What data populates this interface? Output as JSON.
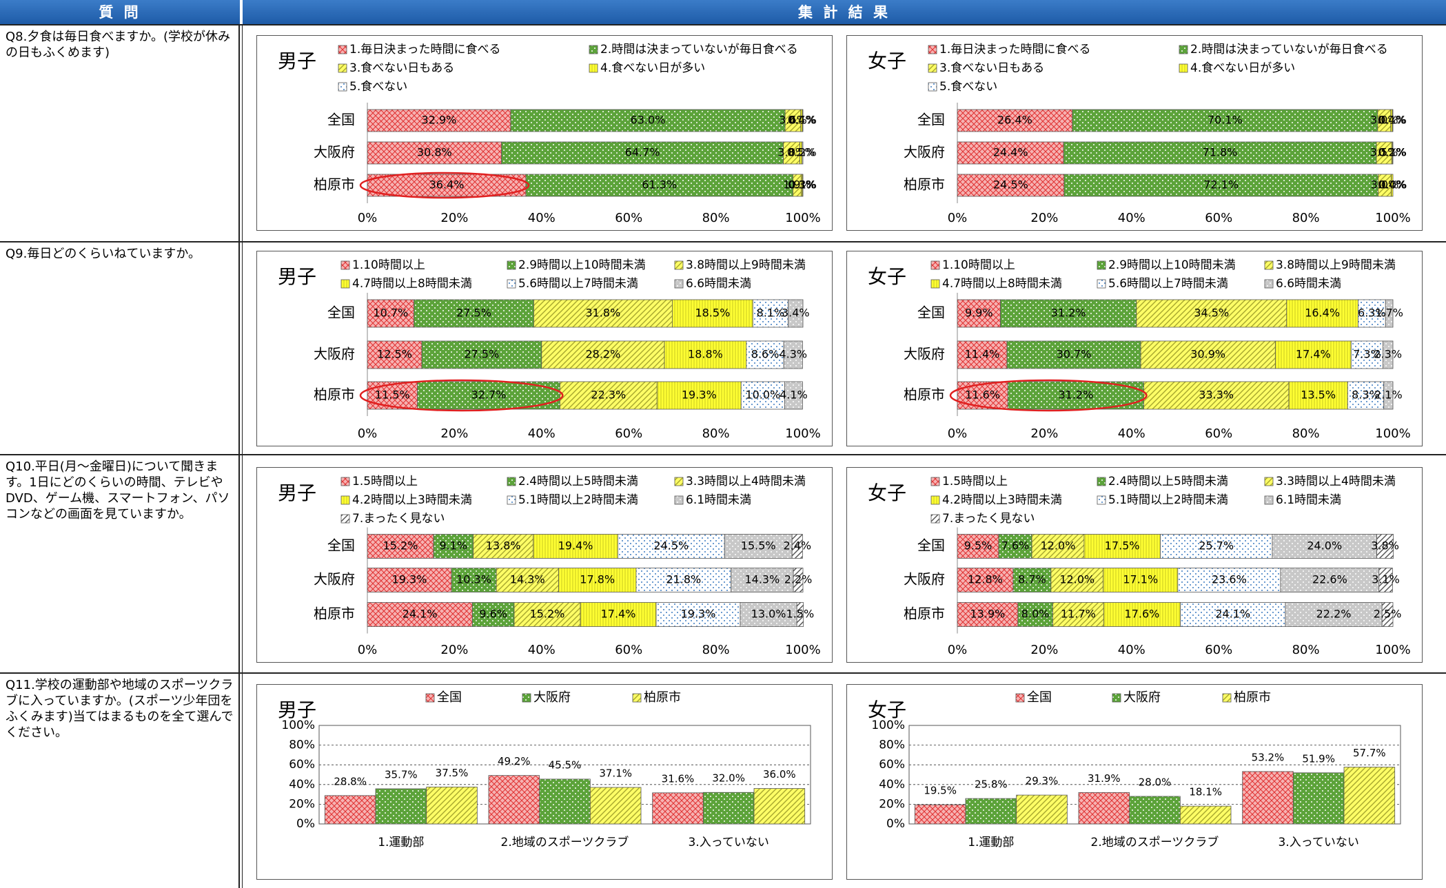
{
  "header": {
    "question": "質 問",
    "results": "集 計 結 果"
  },
  "questions": [
    "Q8.夕食は毎日食べますか。(学校が休みの日もふくめます)",
    "Q9.毎日どのくらいねていますか。",
    "Q10.平日(月～金曜日)について聞きます。1日にどのくらいの時間、テレビやDVD、ゲーム機、スマートフォン、パソコンなどの画面を見ていますか。",
    "Q11.学校の運動部や地域のスポーツクラブに入っていますか。(スポーツ少年団をふくみます)当てはまるものを全て選んでください。"
  ],
  "chart_data": [
    {
      "type": "bar",
      "orientation": "horizontal",
      "stacked": true,
      "title": "男子",
      "categories": [
        "全国",
        "大阪府",
        "柏原市"
      ],
      "series": [
        {
          "name": "1.毎日決まった時間に食べる",
          "color": "#f6b2b2",
          "values": [
            32.9,
            30.8,
            36.4
          ],
          "value_labels": [
            "32.9%",
            "30.8%",
            "36.4%"
          ]
        },
        {
          "name": "2.時間は決まっていないが毎日食べる",
          "color": "#5ca33a",
          "values": [
            63.0,
            64.7,
            61.3
          ],
          "value_labels": [
            "63.0%",
            "64.7%",
            "61.3%"
          ]
        },
        {
          "name": "3.食べない日もある",
          "color": "#ffff66",
          "values": [
            3.6,
            3.8,
            1.9
          ],
          "value_labels": [
            "3.6%",
            "3.8%",
            "1.9%"
          ]
        },
        {
          "name": "4.食べない日が多い",
          "color": "#ffff33",
          "values": [
            0.4,
            0.5,
            0.3
          ],
          "value_labels": [
            "0.4%",
            "0.5%",
            "0.3%"
          ]
        },
        {
          "name": "5.食べない",
          "color": "#ffffff",
          "values": [
            0.1,
            0.2,
            0.1
          ],
          "value_labels": [
            "0.1%",
            "0.2%",
            "0.1%"
          ]
        }
      ],
      "xlim": [
        0,
        100
      ],
      "xticks": [
        {
          "value": 0,
          "label": "0%"
        },
        {
          "value": 20,
          "label": "20%"
        },
        {
          "value": 40,
          "label": "40%"
        },
        {
          "value": 60,
          "label": "60%"
        },
        {
          "value": 80,
          "label": "80%"
        },
        {
          "value": 100,
          "label": "100%"
        }
      ]
    },
    {
      "type": "bar",
      "orientation": "horizontal",
      "stacked": true,
      "title": "女子",
      "categories": [
        "全国",
        "大阪府",
        "柏原市"
      ],
      "series": [
        {
          "name": "1.毎日決まった時間に食べる",
          "color": "#f6b2b2",
          "values": [
            26.4,
            24.4,
            24.5
          ],
          "value_labels": [
            "26.4%",
            "24.4%",
            "24.5%"
          ]
        },
        {
          "name": "2.時間は決まっていないが毎日食べる",
          "color": "#5ca33a",
          "values": [
            70.1,
            71.8,
            72.1
          ],
          "value_labels": [
            "70.1%",
            "71.8%",
            "72.1%"
          ]
        },
        {
          "name": "3.食べない日もある",
          "color": "#ffff66",
          "values": [
            3.0,
            3.5,
            3.0
          ],
          "value_labels": [
            "3.0%",
            "3.5%",
            "3.0%"
          ]
        },
        {
          "name": "4.食べない日が多い",
          "color": "#ffff33",
          "values": [
            0.4,
            0.2,
            0.4
          ],
          "value_labels": [
            "0.4%",
            "0.2%",
            "0.4%"
          ]
        },
        {
          "name": "5.食べない",
          "color": "#ffffff",
          "values": [
            0.1,
            0.1,
            0.0
          ],
          "value_labels": [
            "0.1%",
            "0.1%",
            "0.0%"
          ]
        }
      ],
      "xlim": [
        0,
        100
      ],
      "xticks": [
        {
          "value": 0,
          "label": "0%"
        },
        {
          "value": 20,
          "label": "20%"
        },
        {
          "value": 40,
          "label": "40%"
        },
        {
          "value": 60,
          "label": "60%"
        },
        {
          "value": 80,
          "label": "80%"
        },
        {
          "value": 100,
          "label": "100%"
        }
      ]
    },
    {
      "type": "bar",
      "orientation": "horizontal",
      "stacked": true,
      "title": "男子",
      "categories": [
        "全国",
        "大阪府",
        "柏原市"
      ],
      "series": [
        {
          "name": "1.10時間以上",
          "color": "#f6b2b2",
          "values": [
            10.7,
            12.5,
            11.5
          ],
          "value_labels": [
            "10.7%",
            "12.5%",
            "11.5%"
          ]
        },
        {
          "name": "2.9時間以上10時間未満",
          "color": "#5ca33a",
          "values": [
            27.5,
            27.5,
            32.7
          ],
          "value_labels": [
            "27.5%",
            "27.5%",
            "32.7%"
          ]
        },
        {
          "name": "3.8時間以上9時間未満",
          "color": "#ffff66",
          "values": [
            31.8,
            28.2,
            22.3
          ],
          "value_labels": [
            "31.8%",
            "28.2%",
            "22.3%"
          ]
        },
        {
          "name": "4.7時間以上8時間未満",
          "color": "#ffff33",
          "values": [
            18.5,
            18.8,
            19.3
          ],
          "value_labels": [
            "18.5%",
            "18.8%",
            "19.3%"
          ]
        },
        {
          "name": "5.6時間以上7時間未満",
          "color": "#ffffff",
          "values": [
            8.1,
            8.6,
            10.0
          ],
          "value_labels": [
            "8.1%",
            "8.6%",
            "10.0%"
          ]
        },
        {
          "name": "6.6時間未満",
          "color": "#c8c8c8",
          "values": [
            3.4,
            4.3,
            4.1
          ],
          "value_labels": [
            "3.4%",
            "4.3%",
            "4.1%"
          ]
        }
      ],
      "xlim": [
        0,
        100
      ],
      "xticks": [
        {
          "value": 0,
          "label": "0%"
        },
        {
          "value": 20,
          "label": "20%"
        },
        {
          "value": 40,
          "label": "40%"
        },
        {
          "value": 60,
          "label": "60%"
        },
        {
          "value": 80,
          "label": "80%"
        },
        {
          "value": 100,
          "label": "100%"
        }
      ]
    },
    {
      "type": "bar",
      "orientation": "horizontal",
      "stacked": true,
      "title": "女子",
      "categories": [
        "全国",
        "大阪府",
        "柏原市"
      ],
      "series": [
        {
          "name": "1.10時間以上",
          "color": "#f6b2b2",
          "values": [
            9.9,
            11.4,
            11.6
          ],
          "value_labels": [
            "9.9%",
            "11.4%",
            "11.6%"
          ]
        },
        {
          "name": "2.9時間以上10時間未満",
          "color": "#5ca33a",
          "values": [
            31.2,
            30.7,
            31.2
          ],
          "value_labels": [
            "31.2%",
            "30.7%",
            "31.2%"
          ]
        },
        {
          "name": "3.8時間以上9時間未満",
          "color": "#ffff66",
          "values": [
            34.5,
            30.9,
            33.3
          ],
          "value_labels": [
            "34.5%",
            "30.9%",
            "33.3%"
          ]
        },
        {
          "name": "4.7時間以上8時間未満",
          "color": "#ffff33",
          "values": [
            16.4,
            17.4,
            13.5
          ],
          "value_labels": [
            "16.4%",
            "17.4%",
            "13.5%"
          ]
        },
        {
          "name": "5.6時間以上7時間未満",
          "color": "#ffffff",
          "values": [
            6.3,
            7.3,
            8.3
          ],
          "value_labels": [
            "6.3%",
            "7.3%",
            "8.3%"
          ]
        },
        {
          "name": "6.6時間未満",
          "color": "#c8c8c8",
          "values": [
            1.7,
            2.3,
            2.1
          ],
          "value_labels": [
            "1.7%",
            "2.3%",
            "2.1%"
          ]
        }
      ],
      "xlim": [
        0,
        100
      ],
      "xticks": [
        {
          "value": 0,
          "label": "0%"
        },
        {
          "value": 20,
          "label": "20%"
        },
        {
          "value": 40,
          "label": "40%"
        },
        {
          "value": 60,
          "label": "60%"
        },
        {
          "value": 80,
          "label": "80%"
        },
        {
          "value": 100,
          "label": "100%"
        }
      ]
    },
    {
      "type": "bar",
      "orientation": "horizontal",
      "stacked": true,
      "title": "男子",
      "categories": [
        "全国",
        "大阪府",
        "柏原市"
      ],
      "series": [
        {
          "name": "1.5時間以上",
          "color": "#f6b2b2",
          "values": [
            15.2,
            19.3,
            24.1
          ],
          "value_labels": [
            "15.2%",
            "19.3%",
            "24.1%"
          ]
        },
        {
          "name": "2.4時間以上5時間未満",
          "color": "#5ca33a",
          "values": [
            9.1,
            10.3,
            9.6
          ],
          "value_labels": [
            "9.1%",
            "10.3%",
            "9.6%"
          ]
        },
        {
          "name": "3.3時間以上4時間未満",
          "color": "#ffff66",
          "values": [
            13.8,
            14.3,
            15.2
          ],
          "value_labels": [
            "13.8%",
            "14.3%",
            "15.2%"
          ]
        },
        {
          "name": "4.2時間以上3時間未満",
          "color": "#ffff33",
          "values": [
            19.4,
            17.8,
            17.4
          ],
          "value_labels": [
            "19.4%",
            "17.8%",
            "17.4%"
          ]
        },
        {
          "name": "5.1時間以上2時間未満",
          "color": "#ffffff",
          "values": [
            24.5,
            21.8,
            19.3
          ],
          "value_labels": [
            "24.5%",
            "21.8%",
            "19.3%"
          ]
        },
        {
          "name": "6.1時間未満",
          "color": "#c8c8c8",
          "values": [
            15.5,
            14.3,
            13.0
          ],
          "value_labels": [
            "15.5%",
            "14.3%",
            "13.0%"
          ]
        },
        {
          "name": "7.まったく見ない",
          "color": "#ffffff",
          "values": [
            2.4,
            2.2,
            1.5
          ],
          "value_labels": [
            "2.4%",
            "2.2%",
            "1.5%"
          ]
        }
      ],
      "xlim": [
        0,
        100
      ],
      "xticks": [
        {
          "value": 0,
          "label": "0%"
        },
        {
          "value": 20,
          "label": "20%"
        },
        {
          "value": 40,
          "label": "40%"
        },
        {
          "value": 60,
          "label": "60%"
        },
        {
          "value": 80,
          "label": "80%"
        },
        {
          "value": 100,
          "label": "100%"
        }
      ]
    },
    {
      "type": "bar",
      "orientation": "horizontal",
      "stacked": true,
      "title": "女子",
      "categories": [
        "全国",
        "大阪府",
        "柏原市"
      ],
      "series": [
        {
          "name": "1.5時間以上",
          "color": "#f6b2b2",
          "values": [
            9.5,
            12.8,
            13.9
          ],
          "value_labels": [
            "9.5%",
            "12.8%",
            "13.9%"
          ]
        },
        {
          "name": "2.4時間以上5時間未満",
          "color": "#5ca33a",
          "values": [
            7.6,
            8.7,
            8.0
          ],
          "value_labels": [
            "7.6%",
            "8.7%",
            "8.0%"
          ]
        },
        {
          "name": "3.3時間以上4時間未満",
          "color": "#ffff66",
          "values": [
            12.0,
            12.0,
            11.7
          ],
          "value_labels": [
            "12.0%",
            "12.0%",
            "11.7%"
          ]
        },
        {
          "name": "4.2時間以上3時間未満",
          "color": "#ffff33",
          "values": [
            17.5,
            17.1,
            17.6
          ],
          "value_labels": [
            "17.5%",
            "17.1%",
            "17.6%"
          ]
        },
        {
          "name": "5.1時間以上2時間未満",
          "color": "#ffffff",
          "values": [
            25.7,
            23.6,
            24.1
          ],
          "value_labels": [
            "25.7%",
            "23.6%",
            "24.1%"
          ]
        },
        {
          "name": "6.1時間未満",
          "color": "#c8c8c8",
          "values": [
            24.0,
            22.6,
            22.2
          ],
          "value_labels": [
            "24.0%",
            "22.6%",
            "22.2%"
          ]
        },
        {
          "name": "7.まったく見ない",
          "color": "#ffffff",
          "values": [
            3.8,
            3.1,
            2.5
          ],
          "value_labels": [
            "3.8%",
            "3.1%",
            "2.5%"
          ]
        }
      ],
      "xlim": [
        0,
        100
      ],
      "xticks": [
        {
          "value": 0,
          "label": "0%"
        },
        {
          "value": 20,
          "label": "20%"
        },
        {
          "value": 40,
          "label": "40%"
        },
        {
          "value": 60,
          "label": "60%"
        },
        {
          "value": 80,
          "label": "80%"
        },
        {
          "value": 100,
          "label": "100%"
        }
      ]
    },
    {
      "type": "bar",
      "orientation": "vertical",
      "stacked": false,
      "title": "男子",
      "categories": [
        "1.運動部",
        "2.地域のスポーツクラブ",
        "3.入っていない"
      ],
      "series": [
        {
          "name": "全国",
          "color": "#f6b2b2",
          "values": [
            28.8,
            49.2,
            31.6
          ],
          "value_labels": [
            "28.8%",
            "49.2%",
            "31.6%"
          ]
        },
        {
          "name": "大阪府",
          "color": "#5ca33a",
          "values": [
            35.7,
            45.5,
            32.0
          ],
          "value_labels": [
            "35.7%",
            "45.5%",
            "32.0%"
          ]
        },
        {
          "name": "柏原市",
          "color": "#ffff66",
          "values": [
            37.5,
            37.1,
            36.0
          ],
          "value_labels": [
            "37.5%",
            "37.1%",
            "36.0%"
          ]
        }
      ],
      "ylim": [
        0,
        100
      ],
      "yticks": [
        {
          "value": 0,
          "label": "0%"
        },
        {
          "value": 20,
          "label": "20%"
        },
        {
          "value": 40,
          "label": "40%"
        },
        {
          "value": 60,
          "label": "60%"
        },
        {
          "value": 80,
          "label": "80%"
        },
        {
          "value": 100,
          "label": "100%"
        }
      ],
      "grid": true
    },
    {
      "type": "bar",
      "orientation": "vertical",
      "stacked": false,
      "title": "女子",
      "categories": [
        "1.運動部",
        "2.地域のスポーツクラブ",
        "3.入っていない"
      ],
      "series": [
        {
          "name": "全国",
          "color": "#f6b2b2",
          "values": [
            19.5,
            31.9,
            53.2
          ],
          "value_labels": [
            "19.5%",
            "31.9%",
            "53.2%"
          ]
        },
        {
          "name": "大阪府",
          "color": "#5ca33a",
          "values": [
            25.8,
            28.0,
            51.9
          ],
          "value_labels": [
            "25.8%",
            "28.0%",
            "51.9%"
          ]
        },
        {
          "name": "柏原市",
          "color": "#ffff66",
          "values": [
            29.3,
            18.1,
            57.7
          ],
          "value_labels": [
            "29.3%",
            "18.1%",
            "57.7%"
          ]
        }
      ],
      "ylim": [
        0,
        100
      ],
      "yticks": [
        {
          "value": 0,
          "label": "0%"
        },
        {
          "value": 20,
          "label": "20%"
        },
        {
          "value": 40,
          "label": "40%"
        },
        {
          "value": 60,
          "label": "60%"
        },
        {
          "value": 80,
          "label": "80%"
        },
        {
          "value": 100,
          "label": "100%"
        }
      ],
      "grid": true
    }
  ]
}
